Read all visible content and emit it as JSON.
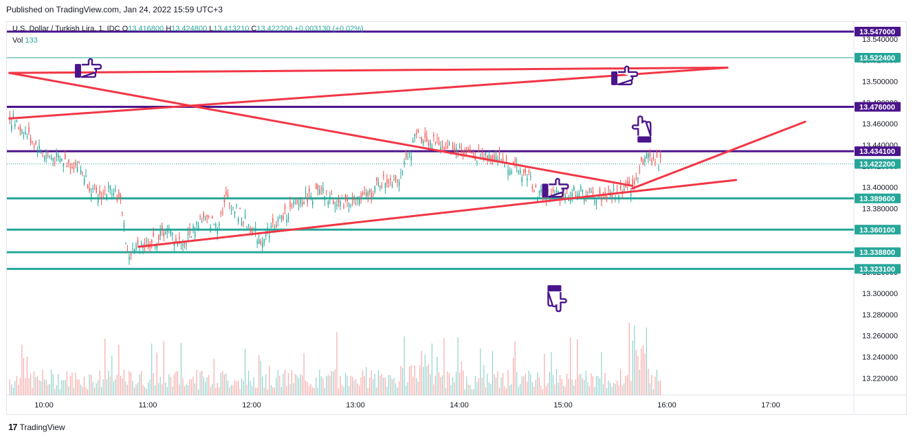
{
  "header": {
    "published": "Published on TradingView.com, Jan 24, 2022 15:59 UTC+3"
  },
  "legend": {
    "symbol": "U.S. Dollar / Turkish Lira, 1, IDC",
    "open_label": "O",
    "open": "13.416800",
    "high_label": "H",
    "high": "13.424800",
    "low_label": "L",
    "low": "13.413210",
    "close_label": "C",
    "close": "13.422200",
    "change": "+0.003130 (+0.02%)",
    "vol_label": "Vol",
    "vol": "133"
  },
  "footer": {
    "brand": "TradingView"
  },
  "colors": {
    "up": "#26a69a",
    "down": "#ef5350",
    "resistance": "#4a148c",
    "support": "#26a69a",
    "trend": "#f23645",
    "price_tag": "#26a69a"
  },
  "chart_data": {
    "type": "candlestick",
    "ylim": [
      13.2,
      13.56
    ],
    "y_ticks": [
      "13.540000",
      "13.520000",
      "13.500000",
      "13.480000",
      "13.460000",
      "13.440000",
      "13.420000",
      "13.400000",
      "13.380000",
      "13.360000",
      "13.340000",
      "13.320000",
      "13.300000",
      "13.280000",
      "13.260000",
      "13.240000",
      "13.220000"
    ],
    "x_ticks": [
      "10:00",
      "11:00",
      "12:00",
      "13:00",
      "14:00",
      "15:00",
      "16:00",
      "17:00"
    ],
    "last_price": "13.422200",
    "resistance_levels": [
      {
        "value": 13.547,
        "label": "13.547000"
      },
      {
        "value": 13.476,
        "label": "13.476000"
      },
      {
        "value": 13.4341,
        "label": "13.434100"
      }
    ],
    "thin_levels": [
      {
        "value": 13.5224,
        "label": "13.522400"
      }
    ],
    "support_levels": [
      {
        "value": 13.3896,
        "label": "13.389600"
      },
      {
        "value": 13.3601,
        "label": "13.360100"
      },
      {
        "value": 13.3388,
        "label": "13.338800"
      },
      {
        "value": 13.3231,
        "label": "13.323100"
      }
    ],
    "trendlines": [
      {
        "from": [
          "09:40",
          13.508
        ],
        "to": [
          "16:35",
          13.513
        ]
      },
      {
        "from": [
          "09:40",
          13.465
        ],
        "to": [
          "16:35",
          13.513
        ]
      },
      {
        "from": [
          "09:40",
          13.508
        ],
        "to": [
          "15:40",
          13.4015
        ]
      },
      {
        "from": [
          "10:55",
          13.344
        ],
        "to": [
          "16:40",
          13.407
        ]
      },
      {
        "from": [
          "15:40",
          13.399
        ],
        "to": [
          "17:20",
          13.462
        ]
      }
    ],
    "price_path": [
      [
        "09:40",
        13.465
      ],
      [
        "09:50",
        13.45
      ],
      [
        "10:00",
        13.43
      ],
      [
        "10:10",
        13.425
      ],
      [
        "10:20",
        13.42
      ],
      [
        "10:30",
        13.39
      ],
      [
        "10:40",
        13.4
      ],
      [
        "10:45",
        13.38
      ],
      [
        "10:48",
        13.335
      ],
      [
        "10:55",
        13.345
      ],
      [
        "11:05",
        13.35
      ],
      [
        "11:10",
        13.36
      ],
      [
        "11:20",
        13.345
      ],
      [
        "11:30",
        13.37
      ],
      [
        "11:40",
        13.365
      ],
      [
        "11:45",
        13.39
      ],
      [
        "11:55",
        13.37
      ],
      [
        "12:05",
        13.35
      ],
      [
        "12:10",
        13.36
      ],
      [
        "12:20",
        13.375
      ],
      [
        "12:30",
        13.39
      ],
      [
        "12:40",
        13.395
      ],
      [
        "12:50",
        13.385
      ],
      [
        "13:05",
        13.39
      ],
      [
        "13:15",
        13.405
      ],
      [
        "13:25",
        13.41
      ],
      [
        "13:30",
        13.425
      ],
      [
        "13:35",
        13.45
      ],
      [
        "13:40",
        13.445
      ],
      [
        "13:50",
        13.44
      ],
      [
        "14:00",
        13.435
      ],
      [
        "14:10",
        13.43
      ],
      [
        "14:20",
        13.43
      ],
      [
        "14:30",
        13.42
      ],
      [
        "14:40",
        13.41
      ],
      [
        "14:45",
        13.395
      ],
      [
        "14:50",
        13.39
      ],
      [
        "15:00",
        13.395
      ],
      [
        "15:10",
        13.395
      ],
      [
        "15:20",
        13.39
      ],
      [
        "15:30",
        13.395
      ],
      [
        "15:40",
        13.398
      ],
      [
        "15:45",
        13.425
      ],
      [
        "15:50",
        13.43
      ],
      [
        "15:55",
        13.422
      ]
    ],
    "volume_scale": [
      0,
      1
    ],
    "annotations": [
      {
        "icon": "thumbs-right-icon",
        "time": "10:25",
        "price": 13.51
      },
      {
        "icon": "thumbs-right-icon",
        "time": "15:35",
        "price": 13.503
      },
      {
        "icon": "thumbs-up-icon",
        "time": "15:47",
        "price": 13.454
      },
      {
        "icon": "thumbs-right-icon",
        "time": "14:55",
        "price": 13.397
      },
      {
        "icon": "thumbs-down-icon",
        "time": "14:55",
        "price": 13.296
      }
    ]
  }
}
